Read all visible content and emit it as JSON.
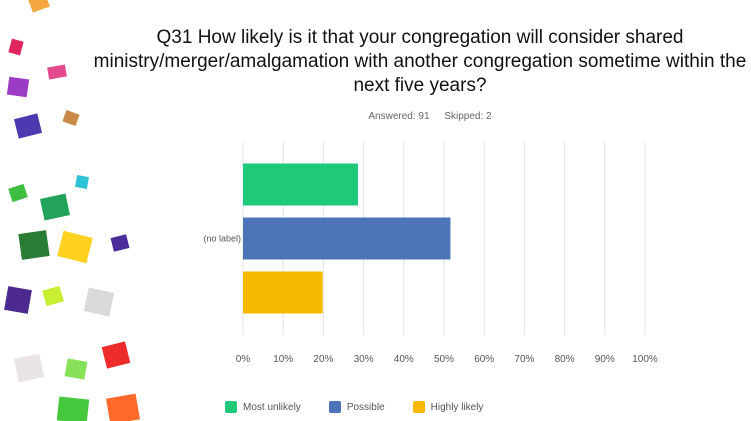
{
  "title": "Q31 How likely is it that your congregation will consider shared ministry/merger/amalgamation with another congregation sometime within the next five years?",
  "answered_label": "Answered: 91",
  "skipped_label": "Skipped: 2",
  "chart_data": {
    "type": "bar",
    "orientation": "horizontal",
    "categories": [
      "(no label)"
    ],
    "series": [
      {
        "name": "Most unlikely",
        "values": [
          28.6
        ],
        "color": "#1fc97a"
      },
      {
        "name": "Possible",
        "values": [
          51.6
        ],
        "color": "#4d74b8"
      },
      {
        "name": "Highly likely",
        "values": [
          19.8
        ],
        "color": "#f6b900"
      }
    ],
    "x_ticks": [
      "0%",
      "10%",
      "20%",
      "30%",
      "40%",
      "50%",
      "60%",
      "70%",
      "80%",
      "90%",
      "100%"
    ],
    "xlim": [
      0,
      100
    ],
    "grid": true,
    "legend_position": "bottom"
  }
}
